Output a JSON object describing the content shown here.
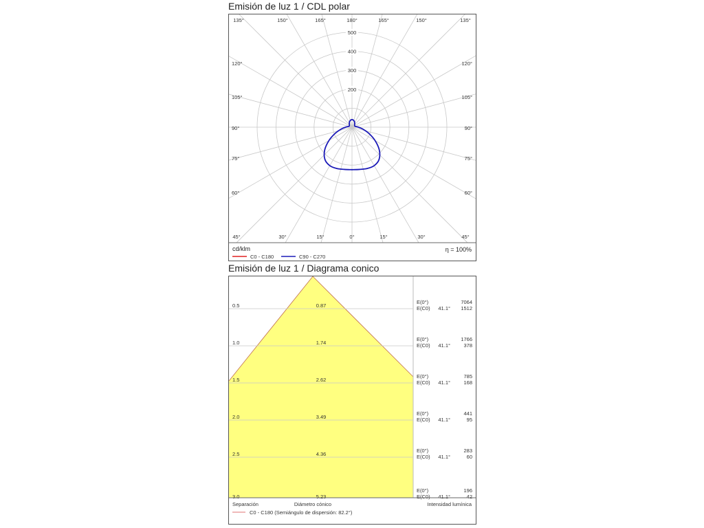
{
  "polar": {
    "title": "Emisión de luz 1 / CDL polar",
    "unit_label": "cd/klm",
    "efficiency_label": "η = 100%",
    "legend": [
      {
        "label": "C0 - C180",
        "color": "#e02020"
      },
      {
        "label": "C90 - C270",
        "color": "#1a1ab8"
      }
    ]
  },
  "cone": {
    "title": "Emisión de luz 1 / Diagrama conico",
    "footer_separation": "Separación",
    "footer_diameter": "Diámetro cónico",
    "footer_intensity": "Intensidad lumínica",
    "legend_label": "C0 - C180 (Semiángulo de dispersión: 82.2°)",
    "legend_color": "#e07070",
    "fill_color": "#ffff80",
    "rows": [
      {
        "distance": "0.5",
        "diameter": "0.87",
        "e0_label": "E(0°)",
        "ec0_label": "E(C0)",
        "angle": "41.1°",
        "e0": "7064",
        "ec0": "1512"
      },
      {
        "distance": "1.0",
        "diameter": "1.74",
        "e0_label": "E(0°)",
        "ec0_label": "E(C0)",
        "angle": "41.1°",
        "e0": "1766",
        "ec0": "378"
      },
      {
        "distance": "1.5",
        "diameter": "2.62",
        "e0_label": "E(0°)",
        "ec0_label": "E(C0)",
        "angle": "41.1°",
        "e0": "785",
        "ec0": "168"
      },
      {
        "distance": "2.0",
        "diameter": "3.49",
        "e0_label": "E(0°)",
        "ec0_label": "E(C0)",
        "angle": "41.1°",
        "e0": "441",
        "ec0": "95"
      },
      {
        "distance": "2.5",
        "diameter": "4.36",
        "e0_label": "E(0°)",
        "ec0_label": "E(C0)",
        "angle": "41.1°",
        "e0": "283",
        "ec0": "60"
      },
      {
        "distance": "3.0",
        "diameter": "5.23",
        "e0_label": "E(0°)",
        "ec0_label": "E(C0)",
        "angle": "41.1°",
        "e0": "196",
        "ec0": "42"
      }
    ]
  },
  "chart_data": [
    {
      "type": "polar-line",
      "title": "Emisión de luz 1 / CDL polar",
      "unit": "cd/klm",
      "radial_ticks": [
        100,
        200,
        300,
        400,
        500
      ],
      "radial_tick_labels": [
        "200",
        "300",
        "400",
        "500"
      ],
      "rlim": [
        0,
        500
      ],
      "angle_labels_top": [
        "135°",
        "150°",
        "165°",
        "180°",
        "165°",
        "150°",
        "135°"
      ],
      "angle_labels_bottom": [
        "45°",
        "30°",
        "15°",
        "0°",
        "15°",
        "30°",
        "45°"
      ],
      "angle_labels_left": [
        "120°",
        "105°",
        "90°",
        "75°",
        "60°"
      ],
      "angle_labels_right": [
        "120°",
        "105°",
        "90°",
        "75°",
        "60°"
      ],
      "angles_deg": [
        0,
        10,
        20,
        30,
        40,
        50,
        60,
        70,
        80,
        90,
        100,
        110,
        120,
        130,
        140,
        150,
        160,
        170,
        180
      ],
      "series": [
        {
          "name": "C0 - C180",
          "color": "#e02020",
          "values": [
            224,
            226,
            232,
            234,
            222,
            188,
            140,
            94,
            58,
            34,
            20,
            16,
            16,
            18,
            22,
            28,
            34,
            38,
            40
          ]
        },
        {
          "name": "C90 - C270",
          "color": "#1a1ab8",
          "values": [
            224,
            226,
            232,
            234,
            222,
            188,
            140,
            94,
            58,
            34,
            20,
            16,
            16,
            18,
            22,
            28,
            34,
            38,
            40
          ]
        }
      ],
      "efficiency": "η = 100%"
    },
    {
      "type": "table",
      "title": "Emisión de luz 1 / Diagrama conico",
      "columns": [
        "Separación",
        "Diámetro cónico",
        "Intensidad lumínica"
      ],
      "half_angle_deg": 41.1,
      "rows": [
        {
          "separation": 0.5,
          "diameter": 0.87,
          "E0": 7064,
          "EC0": 1512
        },
        {
          "separation": 1.0,
          "diameter": 1.74,
          "E0": 1766,
          "EC0": 378
        },
        {
          "separation": 1.5,
          "diameter": 2.62,
          "E0": 785,
          "EC0": 168
        },
        {
          "separation": 2.0,
          "diameter": 3.49,
          "E0": 441,
          "EC0": 95
        },
        {
          "separation": 2.5,
          "diameter": 4.36,
          "E0": 283,
          "EC0": 60
        },
        {
          "separation": 3.0,
          "diameter": 5.23,
          "E0": 196,
          "EC0": 42
        }
      ]
    }
  ]
}
